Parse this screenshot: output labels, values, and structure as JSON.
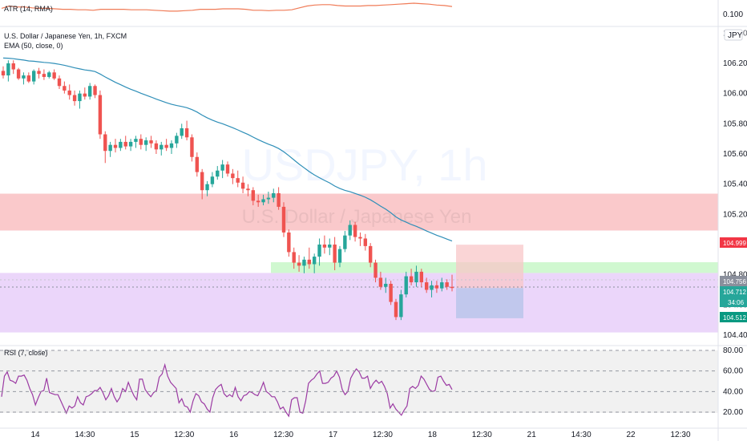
{
  "chart_data": {
    "type": "candlestick",
    "symbol_title": "U.S. Dollar / Japanese Yen, 1h, FXCM",
    "watermark": {
      "symbol": "USDJPY, 1h",
      "description": "U.S. Dollar / Japanese Yen"
    },
    "currency_badge": "JPY",
    "indicators": {
      "atr": {
        "label": "ATR (14, RMA)",
        "axis_label": "0.100",
        "values": [
          0.113,
          0.118,
          0.116,
          0.116,
          0.114,
          0.113,
          0.113,
          0.112,
          0.111,
          0.111,
          0.11,
          0.11,
          0.109,
          0.111,
          0.111,
          0.111,
          0.111,
          0.11,
          0.11,
          0.11,
          0.109,
          0.108,
          0.107,
          0.107,
          0.108,
          0.109,
          0.111,
          0.111,
          0.111,
          0.112,
          0.112,
          0.112,
          0.111,
          0.109,
          0.109,
          0.108,
          0.109,
          0.109,
          0.11,
          0.114,
          0.118,
          0.12,
          0.121,
          0.121,
          0.119,
          0.118,
          0.118,
          0.118,
          0.119,
          0.119,
          0.12,
          0.121,
          0.122,
          0.123,
          0.124,
          0.123,
          0.122,
          0.12,
          0.119,
          0.117
        ]
      },
      "ema": {
        "label": "EMA (50, close, 0)"
      },
      "rsi": {
        "label": "RSI (7, close)",
        "levels": [
          80,
          60,
          40,
          20
        ],
        "values": [
          35,
          55,
          59,
          51,
          50,
          48,
          55,
          55,
          56,
          51,
          43,
          37,
          27,
          34,
          40,
          41,
          53,
          39,
          38,
          37,
          37,
          31,
          25,
          19,
          26,
          24,
          26,
          35,
          29,
          27,
          35,
          36,
          38,
          41,
          41,
          44,
          39,
          32,
          36,
          43,
          35,
          30,
          34,
          43,
          40,
          49,
          42,
          36,
          32,
          52,
          52,
          42,
          38,
          35,
          39,
          41,
          54,
          57,
          66,
          55,
          49,
          46,
          43,
          29,
          33,
          26,
          25,
          20,
          31,
          38,
          36,
          30,
          28,
          23,
          20,
          34,
          42,
          45,
          47,
          38,
          35,
          37,
          35,
          44,
          35,
          31,
          36,
          37,
          40,
          39,
          37,
          36,
          42,
          49,
          40,
          38,
          35,
          35,
          30,
          23,
          25,
          20,
          16,
          32,
          34,
          34,
          20,
          19,
          31,
          48,
          51,
          53,
          57,
          60,
          48,
          48,
          49,
          53,
          55,
          60,
          54,
          42,
          37,
          40,
          53,
          58,
          62,
          59,
          53,
          53,
          55,
          43,
          48,
          51,
          48,
          50,
          45,
          38,
          24,
          28,
          23,
          20,
          17,
          22,
          26,
          43,
          45,
          43,
          46,
          55,
          52,
          47,
          42,
          40,
          41,
          54,
          55,
          50,
          46,
          47,
          42
        ]
      }
    },
    "price_labels": {
      "sell_price": "104.999",
      "last_price": "104.756",
      "current_price": "104.712",
      "countdown": "34:06",
      "target_price": "104.512"
    },
    "price_axis_ticks": [
      "106.200",
      "106.000",
      "105.800",
      "105.600",
      "105.400",
      "105.200",
      "104.800",
      "104.400"
    ],
    "price_axis_partial": [
      "106.400",
      "104.600"
    ],
    "rsi_axis_ticks": [
      "80.00",
      "60.00",
      "40.00",
      "20.00"
    ],
    "time_axis_ticks": [
      "14",
      "14:30",
      "15",
      "12:30",
      "16",
      "12:30",
      "17",
      "12:30",
      "18",
      "12:30",
      "21",
      "14:30",
      "22",
      "12:30"
    ],
    "ylim": [
      104.38,
      106.43
    ],
    "zones": [
      {
        "kind": "resistance",
        "from": 105.093,
        "to": 105.337,
        "color": "#f9bfc2"
      },
      {
        "kind": "support-low",
        "from": 104.418,
        "to": 104.812,
        "color": "#e8cff9"
      },
      {
        "kind": "support-high",
        "from": 104.812,
        "to": 104.883,
        "color": "#c8f7c8"
      }
    ],
    "position": {
      "entry": 104.712,
      "stop": 104.999,
      "target": 104.512,
      "stop_color": "#f8c7c8",
      "target_color": "#b7c4ea"
    },
    "colors": {
      "up": "#26a69a",
      "down": "#ef5350",
      "ema": "#2f8fb8",
      "atr": "#f07b57",
      "rsi": "#9b3aa3"
    },
    "ohlc": [
      [
        106.15,
        106.18,
        106.1,
        106.12
      ],
      [
        106.12,
        106.22,
        106.08,
        106.2
      ],
      [
        106.2,
        106.22,
        106.13,
        106.16
      ],
      [
        106.16,
        106.17,
        106.09,
        106.1
      ],
      [
        106.1,
        106.14,
        106.06,
        106.12
      ],
      [
        106.12,
        106.14,
        106.07,
        106.08
      ],
      [
        106.08,
        106.16,
        106.06,
        106.15
      ],
      [
        106.15,
        106.17,
        106.1,
        106.13
      ],
      [
        106.13,
        106.16,
        106.09,
        106.11
      ],
      [
        106.11,
        106.15,
        106.1,
        106.14
      ],
      [
        106.14,
        106.16,
        106.09,
        106.1
      ],
      [
        106.1,
        106.12,
        106.03,
        106.05
      ],
      [
        106.05,
        106.08,
        106.0,
        106.02
      ],
      [
        106.02,
        106.06,
        105.96,
        105.99
      ],
      [
        105.99,
        106.02,
        105.92,
        105.95
      ],
      [
        105.95,
        106.02,
        105.9,
        106.0
      ],
      [
        106.0,
        106.04,
        105.96,
        105.98
      ],
      [
        105.98,
        106.07,
        105.96,
        106.05
      ],
      [
        106.05,
        106.06,
        105.97,
        105.99
      ],
      [
        105.99,
        106.02,
        105.7,
        105.73
      ],
      [
        105.73,
        105.75,
        105.54,
        105.62
      ],
      [
        105.62,
        105.68,
        105.58,
        105.66
      ],
      [
        105.66,
        105.7,
        105.61,
        105.64
      ],
      [
        105.64,
        105.7,
        105.62,
        105.68
      ],
      [
        105.68,
        105.72,
        105.63,
        105.65
      ],
      [
        105.65,
        105.7,
        105.62,
        105.68
      ],
      [
        105.68,
        105.72,
        105.64,
        105.7
      ],
      [
        105.7,
        105.73,
        105.63,
        105.66
      ],
      [
        105.66,
        105.71,
        105.62,
        105.69
      ],
      [
        105.69,
        105.72,
        105.64,
        105.67
      ],
      [
        105.67,
        105.69,
        105.6,
        105.63
      ],
      [
        105.63,
        105.68,
        105.59,
        105.66
      ],
      [
        105.66,
        105.7,
        105.62,
        105.64
      ],
      [
        105.64,
        105.69,
        105.6,
        105.67
      ],
      [
        105.67,
        105.74,
        105.64,
        105.72
      ],
      [
        105.72,
        105.8,
        105.7,
        105.77
      ],
      [
        105.77,
        105.82,
        105.69,
        105.71
      ],
      [
        105.71,
        105.73,
        105.55,
        105.58
      ],
      [
        105.58,
        105.61,
        105.45,
        105.48
      ],
      [
        105.48,
        105.5,
        105.3,
        105.36
      ],
      [
        105.36,
        105.42,
        105.32,
        105.4
      ],
      [
        105.4,
        105.48,
        105.38,
        105.45
      ],
      [
        105.45,
        105.52,
        105.43,
        105.49
      ],
      [
        105.49,
        105.56,
        105.44,
        105.53
      ],
      [
        105.53,
        105.55,
        105.45,
        105.47
      ],
      [
        105.47,
        105.5,
        105.4,
        105.44
      ],
      [
        105.44,
        105.49,
        105.38,
        105.41
      ],
      [
        105.41,
        105.45,
        105.34,
        105.37
      ],
      [
        105.37,
        105.4,
        105.32,
        105.36
      ],
      [
        105.36,
        105.38,
        105.26,
        105.29
      ],
      [
        105.29,
        105.33,
        105.25,
        105.28
      ],
      [
        105.28,
        105.33,
        105.26,
        105.3
      ],
      [
        105.3,
        105.35,
        105.27,
        105.31
      ],
      [
        105.31,
        105.37,
        105.28,
        105.34
      ],
      [
        105.34,
        105.38,
        105.23,
        105.25
      ],
      [
        105.25,
        105.28,
        105.05,
        105.08
      ],
      [
        105.08,
        105.1,
        104.92,
        104.95
      ],
      [
        104.95,
        104.98,
        104.84,
        104.88
      ],
      [
        104.88,
        104.93,
        104.82,
        104.86
      ],
      [
        104.86,
        104.92,
        104.81,
        104.9
      ],
      [
        104.9,
        104.98,
        104.84,
        104.87
      ],
      [
        104.87,
        104.94,
        104.81,
        104.92
      ],
      [
        104.92,
        105.04,
        104.86,
        105.0
      ],
      [
        105.0,
        105.06,
        104.94,
        104.98
      ],
      [
        104.98,
        105.04,
        104.93,
        105.0
      ],
      [
        105.0,
        105.05,
        104.83,
        104.88
      ],
      [
        104.88,
        104.99,
        104.85,
        104.97
      ],
      [
        104.97,
        105.09,
        104.95,
        105.06
      ],
      [
        105.06,
        105.16,
        105.03,
        105.13
      ],
      [
        105.13,
        105.15,
        105.02,
        105.05
      ],
      [
        105.05,
        105.08,
        104.99,
        105.04
      ],
      [
        105.04,
        105.07,
        104.96,
        104.99
      ],
      [
        104.99,
        105.01,
        104.85,
        104.88
      ],
      [
        104.88,
        104.9,
        104.75,
        104.78
      ],
      [
        104.78,
        104.82,
        104.7,
        104.72
      ],
      [
        104.72,
        104.78,
        104.68,
        104.74
      ],
      [
        104.74,
        104.76,
        104.6,
        104.62
      ],
      [
        104.62,
        104.64,
        104.5,
        104.52
      ],
      [
        104.52,
        104.7,
        104.5,
        104.67
      ],
      [
        104.67,
        104.82,
        104.65,
        104.79
      ],
      [
        104.79,
        104.84,
        104.73,
        104.75
      ],
      [
        104.75,
        104.86,
        104.72,
        104.82
      ],
      [
        104.82,
        104.84,
        104.72,
        104.75
      ],
      [
        104.75,
        104.78,
        104.68,
        104.7
      ],
      [
        104.7,
        104.76,
        104.65,
        104.73
      ],
      [
        104.73,
        104.76,
        104.68,
        104.71
      ],
      [
        104.71,
        104.78,
        104.69,
        104.75
      ],
      [
        104.75,
        104.77,
        104.7,
        104.72
      ],
      [
        104.72,
        104.8,
        104.69,
        104.712
      ]
    ]
  }
}
